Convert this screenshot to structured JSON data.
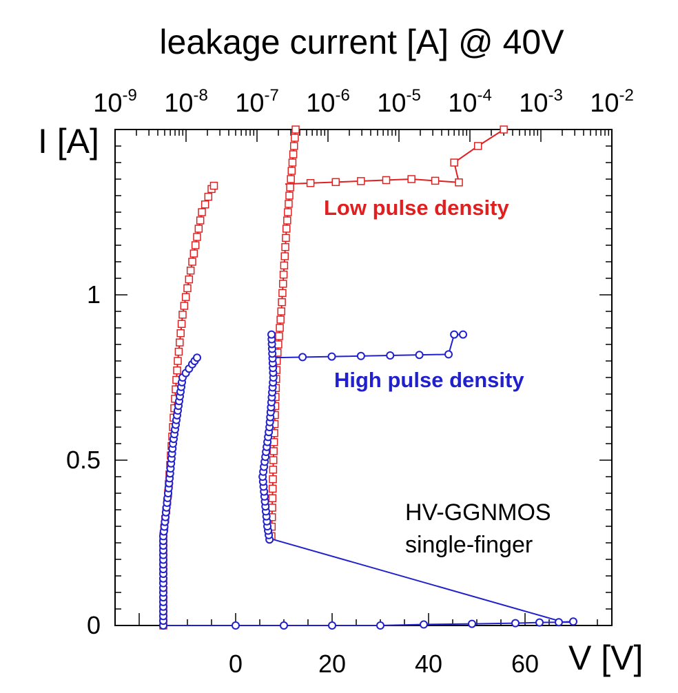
{
  "chart_data": {
    "type": "scatter",
    "title": "leakage current [A] @ 40V",
    "top_axis": {
      "scale": "log",
      "range": [
        1e-09,
        0.01
      ],
      "ticks": [
        {
          "base": "10",
          "exp": "-9"
        },
        {
          "base": "10",
          "exp": "-8"
        },
        {
          "base": "10",
          "exp": "-7"
        },
        {
          "base": "10",
          "exp": "-6"
        },
        {
          "base": "10",
          "exp": "-5"
        },
        {
          "base": "10",
          "exp": "-4"
        },
        {
          "base": "10",
          "exp": "-3"
        },
        {
          "base": "10",
          "exp": "-2"
        }
      ]
    },
    "x_axis": {
      "label": "V [V]",
      "range": [
        -25,
        78
      ],
      "ticks": [
        "0",
        "20",
        "40",
        "60"
      ]
    },
    "y_axis": {
      "label": "I [A]",
      "range": [
        0,
        1.5
      ],
      "ticks": [
        "0",
        "0.5",
        "1"
      ]
    },
    "annotation": [
      "HV-GGNMOS",
      "single-finger"
    ],
    "series": [
      {
        "name": "Low pulse density",
        "color": "#e02020",
        "marker": "square",
        "iv_curve": [
          [
            -15,
            0
          ],
          [
            -15,
            0.27
          ],
          [
            -14,
            0.4
          ],
          [
            -13,
            0.6
          ],
          [
            -12,
            0.8
          ],
          [
            -11,
            0.94
          ],
          [
            -9,
            1.1
          ],
          [
            -7,
            1.25
          ],
          [
            -5,
            1.32
          ],
          [
            -4.5,
            1.33
          ]
        ],
        "leakage_curve": [
          [
            1.6e-07,
            0.27
          ],
          [
            1.7e-07,
            0.5
          ],
          [
            1.9e-07,
            0.8
          ],
          [
            2.2e-07,
            0.95
          ],
          [
            2.6e-07,
            1.2
          ],
          [
            3e-07,
            1.35
          ],
          [
            3.5e-07,
            1.5
          ]
        ],
        "snapback_tail": [
          [
            2.5e-07,
            1.335
          ],
          [
            1.5e-05,
            1.35
          ],
          [
            7e-05,
            1.34
          ],
          [
            6e-05,
            1.4
          ],
          [
            0.00013,
            1.45
          ],
          [
            0.0003,
            1.5
          ]
        ]
      },
      {
        "name": "High pulse density",
        "color": "#2020cc",
        "marker": "circle",
        "iv_curve": [
          [
            -15,
            0
          ],
          [
            -15,
            0.27
          ],
          [
            -14,
            0.4
          ],
          [
            -13,
            0.55
          ],
          [
            -12,
            0.65
          ],
          [
            -11,
            0.75
          ],
          [
            -9,
            0.79
          ],
          [
            -8,
            0.81
          ]
        ],
        "leakage_curve": [
          [
            1.5e-07,
            0.26
          ],
          [
            1.4e-07,
            0.3
          ],
          [
            1.2e-07,
            0.45
          ],
          [
            1.5e-07,
            0.6
          ],
          [
            1.7e-07,
            0.75
          ],
          [
            1.6e-07,
            0.88
          ]
        ],
        "snapback_tail": [
          [
            1.7e-07,
            0.81
          ],
          [
            5e-05,
            0.82
          ],
          [
            6e-05,
            0.88
          ],
          [
            8e-05,
            0.88
          ]
        ],
        "return_line": [
          [
            1.7e-07,
            0.26
          ],
          [
            68,
            0.01
          ],
          [
            70,
            0.01
          ]
        ],
        "baseline_points": [
          [
            -15,
            0
          ],
          [
            0,
            0
          ],
          [
            10,
            0
          ],
          [
            20,
            0
          ],
          [
            30,
            0
          ],
          [
            39,
            0.003
          ],
          [
            49,
            0.005
          ],
          [
            58,
            0.007
          ],
          [
            63,
            0.009
          ],
          [
            67,
            0.01
          ],
          [
            70,
            0.012
          ]
        ]
      }
    ]
  }
}
